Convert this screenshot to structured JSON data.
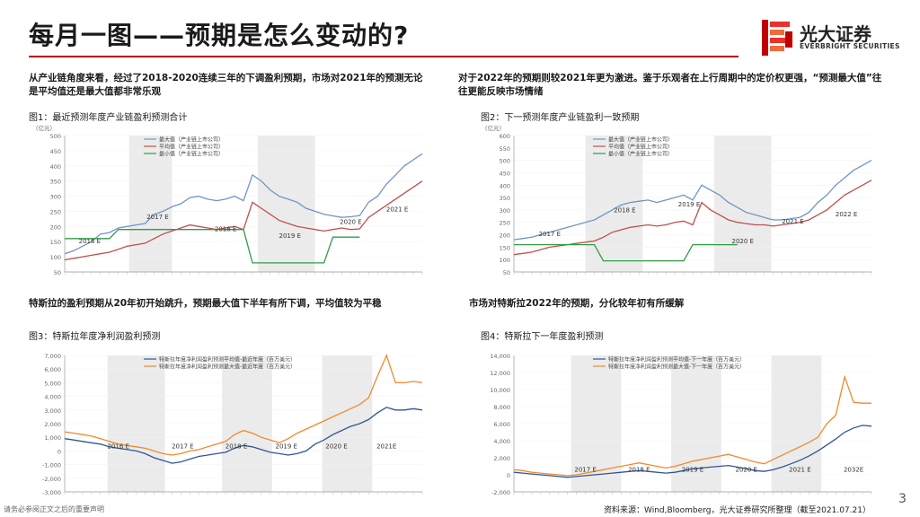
{
  "title": "每月一图——预期是怎么变动的?",
  "logo": {
    "name": "光大证券",
    "en": "EVERBRIGHT SECURITIES"
  },
  "paragraphs": {
    "tl": "从产业链角度来看，经过了2018-2020连续三年的下调盈利预期，市场对2021年的预测无论 是平均值还是最大值都非常乐观",
    "tr": "对于2022年的预期则较2021年更为激进。鉴于乐观者在上行周期中的定价权更强，“预测最大值”往往更能反映市场情绪",
    "bl": "特斯拉的盈利预期从20年初开始跳升，预期最大值下半年有所下调，平均值较为平稳",
    "br": "市场对特斯拉2022年的预期，分化较年初有所缓解"
  },
  "figures": {
    "f1": "图1：最近预测年度产业链盈利预测合计",
    "f2": "图2：下一预测年度产业链盈利一致预期",
    "f3": "图3：特斯拉年度净利润盈利预测",
    "f4": "图4：特斯拉下一年度盈利预测"
  },
  "source": "资料来源：Wind,Bloomberg，光大证券研究所整理（截至2021.07.21）",
  "page_number": "3",
  "disclaimer": "请务必参阅正文之后的重要声明",
  "colors": {
    "accent": "#c00000",
    "blue": "#6f95c8",
    "red": "#c0504d",
    "green": "#2e9e44",
    "orange": "#f08a2c",
    "darkblue": "#2f5597",
    "shade": "#ebebeb"
  },
  "chart_data": [
    {
      "id": "f1",
      "type": "line",
      "unit": "（亿元）",
      "ylim": [
        50,
        500
      ],
      "yticks": [
        "500",
        "450",
        "400",
        "350",
        "300",
        "250",
        "200",
        "150",
        "100",
        "50"
      ],
      "shaded_periods": [
        [
          0.18,
          0.3
        ],
        [
          0.54,
          0.7
        ]
      ],
      "period_labels": [
        {
          "text": "2016 E",
          "x": 0.07,
          "y": 145
        },
        {
          "text": "2017 E",
          "x": 0.26,
          "y": 225
        },
        {
          "text": "2018 E",
          "x": 0.45,
          "y": 185
        },
        {
          "text": "2019 E",
          "x": 0.63,
          "y": 162
        },
        {
          "text": "2020 E",
          "x": 0.8,
          "y": 208
        },
        {
          "text": "2021 E",
          "x": 0.93,
          "y": 250
        }
      ],
      "series": [
        {
          "name": "最大值（产业链上市公司）",
          "color": "#6f95c8",
          "values": [
            110,
            120,
            135,
            150,
            175,
            180,
            195,
            200,
            205,
            210,
            240,
            250,
            265,
            275,
            295,
            300,
            290,
            285,
            290,
            300,
            285,
            370,
            350,
            320,
            300,
            290,
            280,
            260,
            250,
            240,
            235,
            230,
            232,
            236,
            280,
            300,
            340,
            370,
            400,
            420,
            440
          ]
        },
        {
          "name": "平均值（产业链上市公司）",
          "color": "#c0504d",
          "values": [
            90,
            95,
            100,
            105,
            110,
            115,
            125,
            135,
            140,
            145,
            160,
            175,
            185,
            195,
            205,
            200,
            195,
            190,
            195,
            200,
            190,
            280,
            260,
            240,
            220,
            210,
            200,
            195,
            190,
            185,
            190,
            195,
            190,
            192,
            230,
            250,
            270,
            290,
            310,
            330,
            350
          ]
        },
        {
          "name": "最小值（产业链上市公司）",
          "color": "#2e9e44",
          "values": [
            160,
            160,
            160,
            160,
            160,
            160,
            190,
            190,
            190,
            190,
            190,
            190,
            190,
            190,
            190,
            190,
            190,
            190,
            190,
            190,
            190,
            80,
            80,
            80,
            80,
            80,
            80,
            80,
            80,
            80,
            165,
            165,
            165,
            165,
            null,
            null,
            null,
            null,
            null,
            null,
            null
          ]
        }
      ]
    },
    {
      "id": "f2",
      "type": "line",
      "unit": "（亿元）",
      "ylim": [
        50,
        600
      ],
      "yticks": [
        "600",
        "550",
        "500",
        "450",
        "400",
        "350",
        "300",
        "250",
        "200",
        "150",
        "100",
        "50"
      ],
      "shaded_periods": [
        [
          0.2,
          0.36
        ],
        [
          0.56,
          0.72
        ]
      ],
      "period_labels": [
        {
          "text": "2017 E",
          "x": 0.1,
          "y": 195
        },
        {
          "text": "2018 E",
          "x": 0.31,
          "y": 290
        },
        {
          "text": "2019 E",
          "x": 0.49,
          "y": 315
        },
        {
          "text": "2020 E",
          "x": 0.64,
          "y": 165
        },
        {
          "text": "2021 E",
          "x": 0.78,
          "y": 245
        },
        {
          "text": "2022 E",
          "x": 0.93,
          "y": 275
        }
      ],
      "series": [
        {
          "name": "最大值（产业链上市公司）",
          "color": "#6f95c8",
          "values": [
            180,
            185,
            190,
            200,
            210,
            220,
            230,
            240,
            250,
            260,
            280,
            300,
            320,
            330,
            335,
            340,
            330,
            340,
            350,
            360,
            340,
            400,
            380,
            360,
            330,
            310,
            290,
            280,
            270,
            260,
            260,
            265,
            270,
            290,
            330,
            360,
            400,
            430,
            460,
            480,
            500
          ]
        },
        {
          "name": "平均值（产业链上市公司）",
          "color": "#c0504d",
          "values": [
            120,
            125,
            130,
            140,
            150,
            155,
            160,
            165,
            170,
            175,
            190,
            210,
            220,
            230,
            235,
            240,
            235,
            240,
            250,
            255,
            240,
            330,
            300,
            280,
            260,
            250,
            245,
            240,
            240,
            235,
            240,
            245,
            250,
            260,
            280,
            300,
            330,
            360,
            380,
            400,
            420
          ]
        },
        {
          "name": "最小值（产业链上市公司）",
          "color": "#2e9e44",
          "values": [
            160,
            160,
            160,
            160,
            160,
            160,
            160,
            160,
            160,
            160,
            95,
            95,
            95,
            95,
            95,
            95,
            95,
            95,
            95,
            95,
            160,
            160,
            160,
            160,
            160,
            160,
            null,
            null,
            null,
            null,
            null,
            null,
            null,
            null,
            null,
            null,
            null,
            null,
            null,
            null,
            null
          ]
        }
      ]
    },
    {
      "id": "f3",
      "type": "line",
      "unit": "",
      "ylim": [
        -3000,
        7000
      ],
      "yticks": [
        "7,000",
        "6,000",
        "5,000",
        "4,000",
        "3,000",
        "2,000",
        "1,000",
        "0",
        "-1,000",
        "-2,000",
        "-3,000"
      ],
      "shaded_periods": [
        [
          0.12,
          0.28
        ],
        [
          0.44,
          0.58
        ],
        [
          0.72,
          0.86
        ]
      ],
      "period_labels": [
        {
          "text": "2016 E",
          "x": 0.15,
          "y": 200
        },
        {
          "text": "2017 E",
          "x": 0.33,
          "y": 200
        },
        {
          "text": "2018 E",
          "x": 0.48,
          "y": 200
        },
        {
          "text": "2019 E",
          "x": 0.62,
          "y": 200
        },
        {
          "text": "2020 E",
          "x": 0.76,
          "y": 200
        },
        {
          "text": "2021E",
          "x": 0.9,
          "y": 200
        }
      ],
      "series": [
        {
          "name": "特斯拉年度净利润盈利预测平均值-最近年度（百万美元）",
          "color": "#2f5597",
          "values": [
            900,
            800,
            700,
            600,
            500,
            300,
            200,
            100,
            0,
            -200,
            -500,
            -700,
            -900,
            -800,
            -600,
            -400,
            -300,
            -200,
            -100,
            200,
            400,
            300,
            100,
            -100,
            -200,
            -300,
            -200,
            0,
            500,
            800,
            1200,
            1500,
            1800,
            2000,
            2300,
            2800,
            3200,
            3000,
            3000,
            3100,
            3000
          ]
        },
        {
          "name": "特斯拉年度净利润盈利预测最大值-最近年度（百万美元）",
          "color": "#f08a2c",
          "values": [
            1400,
            1300,
            1200,
            1100,
            900,
            700,
            500,
            400,
            300,
            200,
            0,
            -200,
            -300,
            -200,
            0,
            100,
            300,
            500,
            700,
            1200,
            1500,
            1300,
            1000,
            800,
            600,
            900,
            1300,
            1600,
            1900,
            2200,
            2500,
            2800,
            3100,
            3400,
            3900,
            5500,
            7000,
            5000,
            5000,
            5100,
            5000
          ]
        }
      ]
    },
    {
      "id": "f4",
      "type": "line",
      "unit": "",
      "ylim": [
        -2000,
        14000
      ],
      "yticks": [
        "14,000",
        "12,000",
        "10,000",
        "8,000",
        "6,000",
        "4,000",
        "2,000",
        "0",
        "-2,000"
      ],
      "shaded_periods": [
        [
          0.16,
          0.3
        ],
        [
          0.44,
          0.58
        ],
        [
          0.72,
          0.86
        ]
      ],
      "period_labels": [
        {
          "text": "2017 E",
          "x": 0.2,
          "y": 390
        },
        {
          "text": "2018 E",
          "x": 0.35,
          "y": 390
        },
        {
          "text": "2019 E",
          "x": 0.5,
          "y": 390
        },
        {
          "text": "2020 E",
          "x": 0.65,
          "y": 390
        },
        {
          "text": "2021 E",
          "x": 0.8,
          "y": 390
        },
        {
          "text": "2032E",
          "x": 0.95,
          "y": 390
        }
      ],
      "series": [
        {
          "name": "特斯拉年度净利润盈利预测平均值-下一年度（百万美元）",
          "color": "#2f5597",
          "values": [
            300,
            200,
            100,
            0,
            -100,
            -200,
            -300,
            -200,
            -100,
            0,
            100,
            200,
            300,
            400,
            500,
            400,
            300,
            200,
            300,
            500,
            700,
            800,
            900,
            1000,
            1100,
            900,
            700,
            500,
            400,
            600,
            900,
            1300,
            1700,
            2200,
            2800,
            3500,
            4200,
            5000,
            5500,
            5800,
            5700
          ]
        },
        {
          "name": "特斯拉年度净利润盈利预测最大值-下一年度（百万美元）",
          "color": "#f08a2c",
          "values": [
            600,
            500,
            300,
            200,
            100,
            0,
            -100,
            0,
            200,
            400,
            600,
            800,
            1000,
            1200,
            1400,
            1200,
            1000,
            800,
            1000,
            1300,
            1600,
            1800,
            2000,
            2200,
            2400,
            2100,
            1800,
            1500,
            1300,
            1800,
            2300,
            2800,
            3300,
            3800,
            4400,
            6000,
            7000,
            11500,
            8500,
            8400,
            8400
          ]
        }
      ]
    }
  ]
}
